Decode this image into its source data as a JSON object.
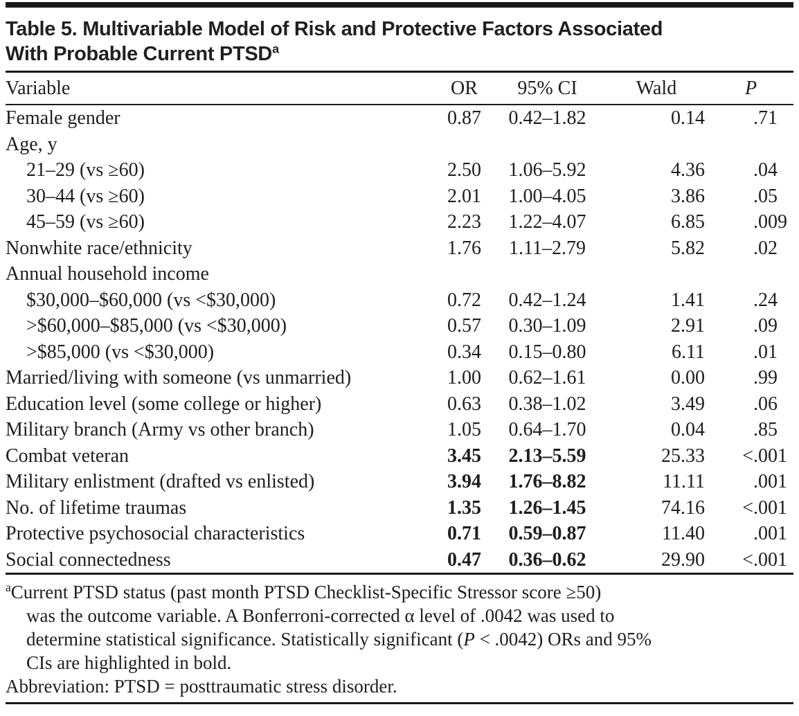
{
  "title": {
    "line1": "Table 5. Multivariable Model of Risk and Protective Factors Associated",
    "line2": "With Probable Current PTSD",
    "superscript": "a"
  },
  "colors": {
    "text": "#1f1d1e",
    "rule": "#1a1a1a",
    "background": "#ffffff"
  },
  "table": {
    "columns": [
      "Variable",
      "OR",
      "95% CI",
      "Wald",
      "P"
    ],
    "rows": [
      {
        "label": "Female gender",
        "indent": false,
        "bold": false,
        "or": "0.87",
        "ci": "0.42–1.82",
        "wald": "0.14",
        "p_prefix": "",
        "p": ".71"
      },
      {
        "label": "Age, y",
        "indent": false,
        "bold": false,
        "or": "",
        "ci": "",
        "wald": "",
        "p_prefix": "",
        "p": ""
      },
      {
        "label": "21–29 (vs ≥60)",
        "indent": true,
        "bold": false,
        "or": "2.50",
        "ci": "1.06–5.92",
        "wald": "4.36",
        "p_prefix": "",
        "p": ".04"
      },
      {
        "label": "30–44 (vs ≥60)",
        "indent": true,
        "bold": false,
        "or": "2.01",
        "ci": "1.00–4.05",
        "wald": "3.86",
        "p_prefix": "",
        "p": ".05"
      },
      {
        "label": "45–59 (vs ≥60)",
        "indent": true,
        "bold": false,
        "or": "2.23",
        "ci": "1.22–4.07",
        "wald": "6.85",
        "p_prefix": "",
        "p": ".009"
      },
      {
        "label": "Nonwhite race/ethnicity",
        "indent": false,
        "bold": false,
        "or": "1.76",
        "ci": "1.11–2.79",
        "wald": "5.82",
        "p_prefix": "",
        "p": ".02"
      },
      {
        "label": "Annual household income",
        "indent": false,
        "bold": false,
        "or": "",
        "ci": "",
        "wald": "",
        "p_prefix": "",
        "p": ""
      },
      {
        "label": "$30,000–$60,000 (vs <$30,000)",
        "indent": true,
        "bold": false,
        "or": "0.72",
        "ci": "0.42–1.24",
        "wald": "1.41",
        "p_prefix": "",
        "p": ".24"
      },
      {
        "label": ">$60,000–$85,000 (vs <$30,000)",
        "indent": true,
        "bold": false,
        "or": "0.57",
        "ci": "0.30–1.09",
        "wald": "2.91",
        "p_prefix": "",
        "p": ".09"
      },
      {
        "label": ">$85,000 (vs <$30,000)",
        "indent": true,
        "bold": false,
        "or": "0.34",
        "ci": "0.15–0.80",
        "wald": "6.11",
        "p_prefix": "",
        "p": ".01"
      },
      {
        "label": "Married/living with someone (vs unmarried)",
        "indent": false,
        "bold": false,
        "or": "1.00",
        "ci": "0.62–1.61",
        "wald": "0.00",
        "p_prefix": "",
        "p": ".99"
      },
      {
        "label": "Education level (some college or higher)",
        "indent": false,
        "bold": false,
        "or": "0.63",
        "ci": "0.38–1.02",
        "wald": "3.49",
        "p_prefix": "",
        "p": ".06"
      },
      {
        "label": "Military branch (Army vs other branch)",
        "indent": false,
        "bold": false,
        "or": "1.05",
        "ci": "0.64–1.70",
        "wald": "0.04",
        "p_prefix": "",
        "p": ".85"
      },
      {
        "label": "Combat veteran",
        "indent": false,
        "bold": true,
        "or": "3.45",
        "ci": "2.13–5.59",
        "wald": "25.33",
        "p_prefix": "<",
        "p": ".001"
      },
      {
        "label": "Military enlistment (drafted vs enlisted)",
        "indent": false,
        "bold": true,
        "or": "3.94",
        "ci": "1.76–8.82",
        "wald": "11.11",
        "p_prefix": "",
        "p": ".001"
      },
      {
        "label": "No. of lifetime traumas",
        "indent": false,
        "bold": true,
        "or": "1.35",
        "ci": "1.26–1.45",
        "wald": "74.16",
        "p_prefix": "<",
        "p": ".001"
      },
      {
        "label": "Protective psychosocial characteristics",
        "indent": false,
        "bold": true,
        "or": "0.71",
        "ci": "0.59–0.87",
        "wald": "11.40",
        "p_prefix": "",
        "p": ".001"
      },
      {
        "label": "Social connectedness",
        "indent": false,
        "bold": true,
        "or": "0.47",
        "ci": "0.36–0.62",
        "wald": "29.90",
        "p_prefix": "<",
        "p": ".001"
      }
    ]
  },
  "footnote": {
    "lines": [
      {
        "sup": "a",
        "indent": false,
        "segments": [
          {
            "text": "Current PTSD status (past month PTSD Checklist-Specific Stressor score ≥50)"
          }
        ]
      },
      {
        "sup": "",
        "indent": true,
        "segments": [
          {
            "text": "was the outcome variable. A Bonferroni-corrected α level of .0042 was used to"
          }
        ]
      },
      {
        "sup": "",
        "indent": true,
        "segments": [
          {
            "text": "determine statistical significance. Statistically significant ("
          },
          {
            "text": "P",
            "italic": true
          },
          {
            "text": " < .0042) ORs and 95%"
          }
        ]
      },
      {
        "sup": "",
        "indent": true,
        "segments": [
          {
            "text": "CIs are highlighted in bold."
          }
        ]
      },
      {
        "sup": "",
        "indent": false,
        "segments": [
          {
            "text": "Abbreviation: PTSD = posttraumatic stress disorder."
          }
        ]
      }
    ]
  }
}
